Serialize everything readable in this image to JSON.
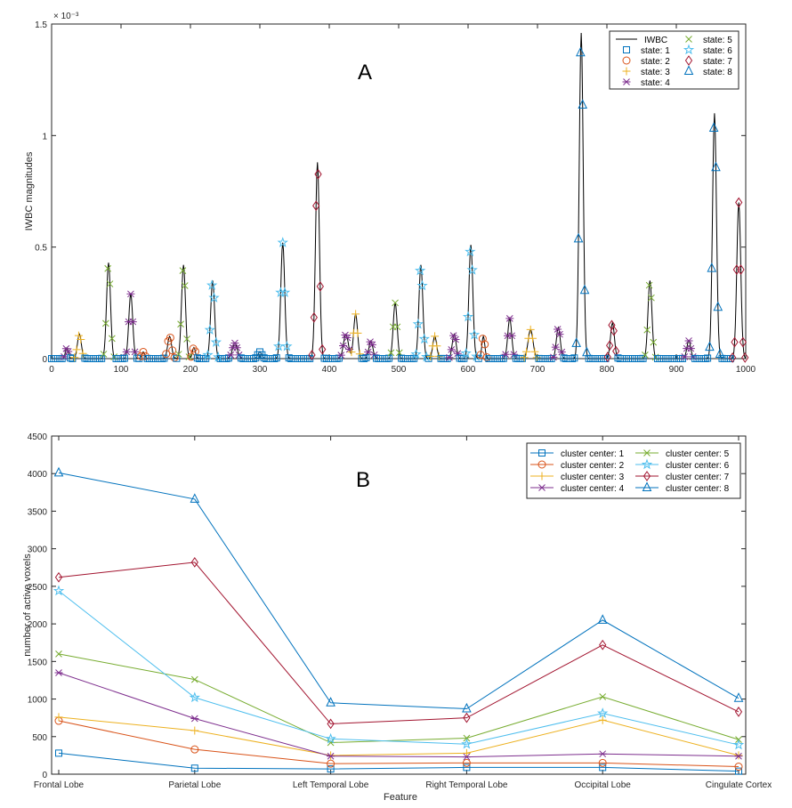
{
  "chart_data": [
    {
      "panel_label": "A",
      "type": "line",
      "title": "",
      "xlabel": "",
      "ylabel": "IWBC magnitudes",
      "y_exponent": "× 10⁻³",
      "xlim": [
        0,
        1000
      ],
      "ylim": [
        0,
        1.5
      ],
      "xticks": [
        0,
        100,
        200,
        300,
        400,
        500,
        600,
        700,
        800,
        900,
        1000
      ],
      "yticks": [
        0,
        0.5,
        1,
        1.5
      ],
      "ytick_labels": [
        "0",
        "0.5",
        "1",
        "1.5"
      ],
      "legend": {
        "position": "top-right",
        "entries": [
          "IWBC",
          "state: 1",
          "state: 2",
          "state: 3",
          "state: 4",
          "state: 5",
          "state: 6",
          "state: 7",
          "state: 8"
        ]
      },
      "peaks": [
        {
          "x": 22,
          "h": 0.05,
          "w": 3,
          "state": 4
        },
        {
          "x": 40,
          "h": 0.11,
          "w": 4,
          "state": 3
        },
        {
          "x": 82,
          "h": 0.43,
          "w": 4,
          "state": 5
        },
        {
          "x": 114,
          "h": 0.29,
          "w": 4,
          "state": 4
        },
        {
          "x": 132,
          "h": 0.03,
          "w": 3,
          "state": 2
        },
        {
          "x": 170,
          "h": 0.1,
          "w": 4,
          "state": 2
        },
        {
          "x": 190,
          "h": 0.42,
          "w": 4,
          "state": 5
        },
        {
          "x": 205,
          "h": 0.05,
          "w": 3,
          "state": 2
        },
        {
          "x": 232,
          "h": 0.35,
          "w": 4,
          "state": 6
        },
        {
          "x": 264,
          "h": 0.07,
          "w": 5,
          "state": 4
        },
        {
          "x": 300,
          "h": 0.03,
          "w": 4,
          "state": 1
        },
        {
          "x": 333,
          "h": 0.52,
          "w": 4,
          "state": 6
        },
        {
          "x": 383,
          "h": 0.88,
          "w": 4,
          "state": 7
        },
        {
          "x": 424,
          "h": 0.11,
          "w": 5,
          "state": 4
        },
        {
          "x": 438,
          "h": 0.2,
          "w": 4,
          "state": 3
        },
        {
          "x": 460,
          "h": 0.08,
          "w": 4,
          "state": 4
        },
        {
          "x": 495,
          "h": 0.25,
          "w": 4,
          "state": 5
        },
        {
          "x": 532,
          "h": 0.42,
          "w": 4,
          "state": 6
        },
        {
          "x": 552,
          "h": 0.1,
          "w": 4,
          "state": 3
        },
        {
          "x": 580,
          "h": 0.11,
          "w": 4,
          "state": 4
        },
        {
          "x": 604,
          "h": 0.51,
          "w": 4,
          "state": 6
        },
        {
          "x": 622,
          "h": 0.1,
          "w": 3,
          "state": 2
        },
        {
          "x": 660,
          "h": 0.18,
          "w": 4,
          "state": 4
        },
        {
          "x": 690,
          "h": 0.13,
          "w": 5,
          "state": 3
        },
        {
          "x": 730,
          "h": 0.14,
          "w": 4,
          "state": 4
        },
        {
          "x": 763,
          "h": 1.46,
          "w": 4,
          "state": 8
        },
        {
          "x": 808,
          "h": 0.16,
          "w": 4,
          "state": 7
        },
        {
          "x": 862,
          "h": 0.35,
          "w": 4,
          "state": 5
        },
        {
          "x": 918,
          "h": 0.08,
          "w": 4,
          "state": 4
        },
        {
          "x": 955,
          "h": 1.1,
          "w": 4,
          "state": 8
        },
        {
          "x": 990,
          "h": 0.7,
          "w": 4,
          "state": 7
        }
      ]
    },
    {
      "panel_label": "B",
      "type": "line",
      "title": "",
      "xlabel": "Feature",
      "ylabel": "number of active voxels",
      "ylim": [
        0,
        4500
      ],
      "yticks": [
        0,
        500,
        1000,
        1500,
        2000,
        2500,
        3000,
        3500,
        4000,
        4500
      ],
      "categories": [
        "Frontal Lobe",
        "Parietal Lobe",
        "Left Temporal Lobe",
        "Right Temporal Lobe",
        "Occipital Lobe",
        "Cingulate Cortex"
      ],
      "legend": {
        "position": "top-right"
      },
      "series": [
        {
          "name": "cluster center: 1",
          "values": [
            280,
            80,
            70,
            90,
            90,
            40
          ],
          "color": "#0072BD",
          "marker": "square"
        },
        {
          "name": "cluster center: 2",
          "values": [
            710,
            330,
            140,
            150,
            150,
            100
          ],
          "color": "#D95319",
          "marker": "circle"
        },
        {
          "name": "cluster center: 3",
          "values": [
            760,
            580,
            250,
            280,
            720,
            250
          ],
          "color": "#EDB120",
          "marker": "plus"
        },
        {
          "name": "cluster center: 4",
          "values": [
            1350,
            740,
            240,
            230,
            270,
            240
          ],
          "color": "#7E2F8E",
          "marker": "asterisk"
        },
        {
          "name": "cluster center: 5",
          "values": [
            1600,
            1260,
            420,
            480,
            1030,
            460
          ],
          "color": "#77AC30",
          "marker": "x"
        },
        {
          "name": "cluster center: 6",
          "values": [
            2440,
            1020,
            470,
            400,
            810,
            390
          ],
          "color": "#4DBEEE",
          "marker": "star"
        },
        {
          "name": "cluster center: 7",
          "values": [
            2620,
            2820,
            670,
            750,
            1720,
            830
          ],
          "color": "#A2142F",
          "marker": "diamond"
        },
        {
          "name": "cluster center: 8",
          "values": [
            4010,
            3660,
            950,
            870,
            2050,
            1010
          ],
          "color": "#0072BD",
          "marker": "triangle"
        }
      ]
    }
  ],
  "colors": {
    "iwbc_line": "#000000",
    "state_1": "#0072BD",
    "state_2": "#D95319",
    "state_3": "#EDB120",
    "state_4": "#7E2F8E",
    "state_5": "#77AC30",
    "state_6": "#4DBEEE",
    "state_7": "#A2142F",
    "state_8": "#0072BD"
  }
}
